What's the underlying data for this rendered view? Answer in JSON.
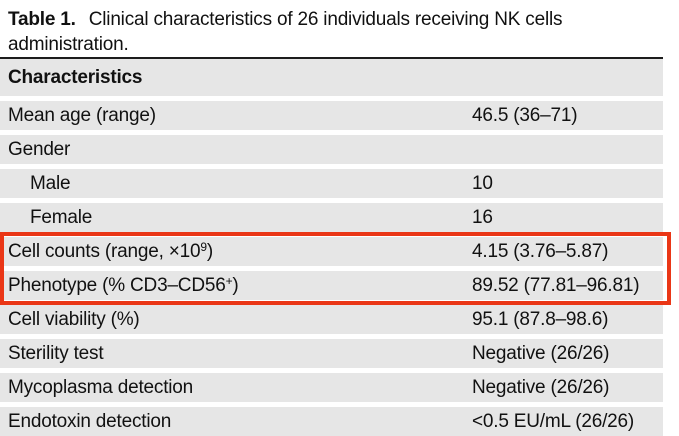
{
  "caption": {
    "label": "Table 1.",
    "text": "Clinical characteristics of 26 individuals receiving NK cells administration."
  },
  "table": {
    "header": "Characteristics",
    "rows": [
      {
        "label": "Mean age (range)",
        "value": "46.5 (36–71)",
        "indent": false,
        "highlighted": false
      },
      {
        "label": "Gender",
        "value": "",
        "indent": false,
        "highlighted": false
      },
      {
        "label": "Male",
        "value": "10",
        "indent": true,
        "highlighted": false
      },
      {
        "label": "Female",
        "value": "16",
        "indent": true,
        "highlighted": false
      },
      {
        "label": "Cell counts (range, ×10",
        "label_sup": "9",
        "label_end": ")",
        "value": "4.15 (3.76–5.87)",
        "indent": false,
        "highlighted": true
      },
      {
        "label": "Phenotype (% CD3–CD56",
        "label_sup": "+",
        "label_end": ")",
        "value": "89.52 (77.81–96.81)",
        "indent": false,
        "highlighted": true
      },
      {
        "label": "Cell viability (%)",
        "value": "95.1 (87.8–98.6)",
        "indent": false,
        "highlighted": false
      },
      {
        "label": "Sterility test",
        "value": "Negative (26/26)",
        "indent": false,
        "highlighted": false
      },
      {
        "label": "Mycoplasma detection",
        "value": "Negative (26/26)",
        "indent": false,
        "highlighted": false
      },
      {
        "label": "Endotoxin detection",
        "value": "<0.5 EU/mL (26/26)",
        "indent": false,
        "highlighted": false
      }
    ]
  },
  "annotation": {
    "type": "highlight-box",
    "border_color": "#ea3616",
    "highlighted_rows": [
      "Cell counts (range, ×10⁹)",
      "Phenotype (% CD3–CD56⁺)"
    ]
  },
  "colors": {
    "row_background": "#e6e6e6",
    "top_rule": "#1c1c1c",
    "text": "#111111",
    "highlight_border": "#ea3616"
  }
}
